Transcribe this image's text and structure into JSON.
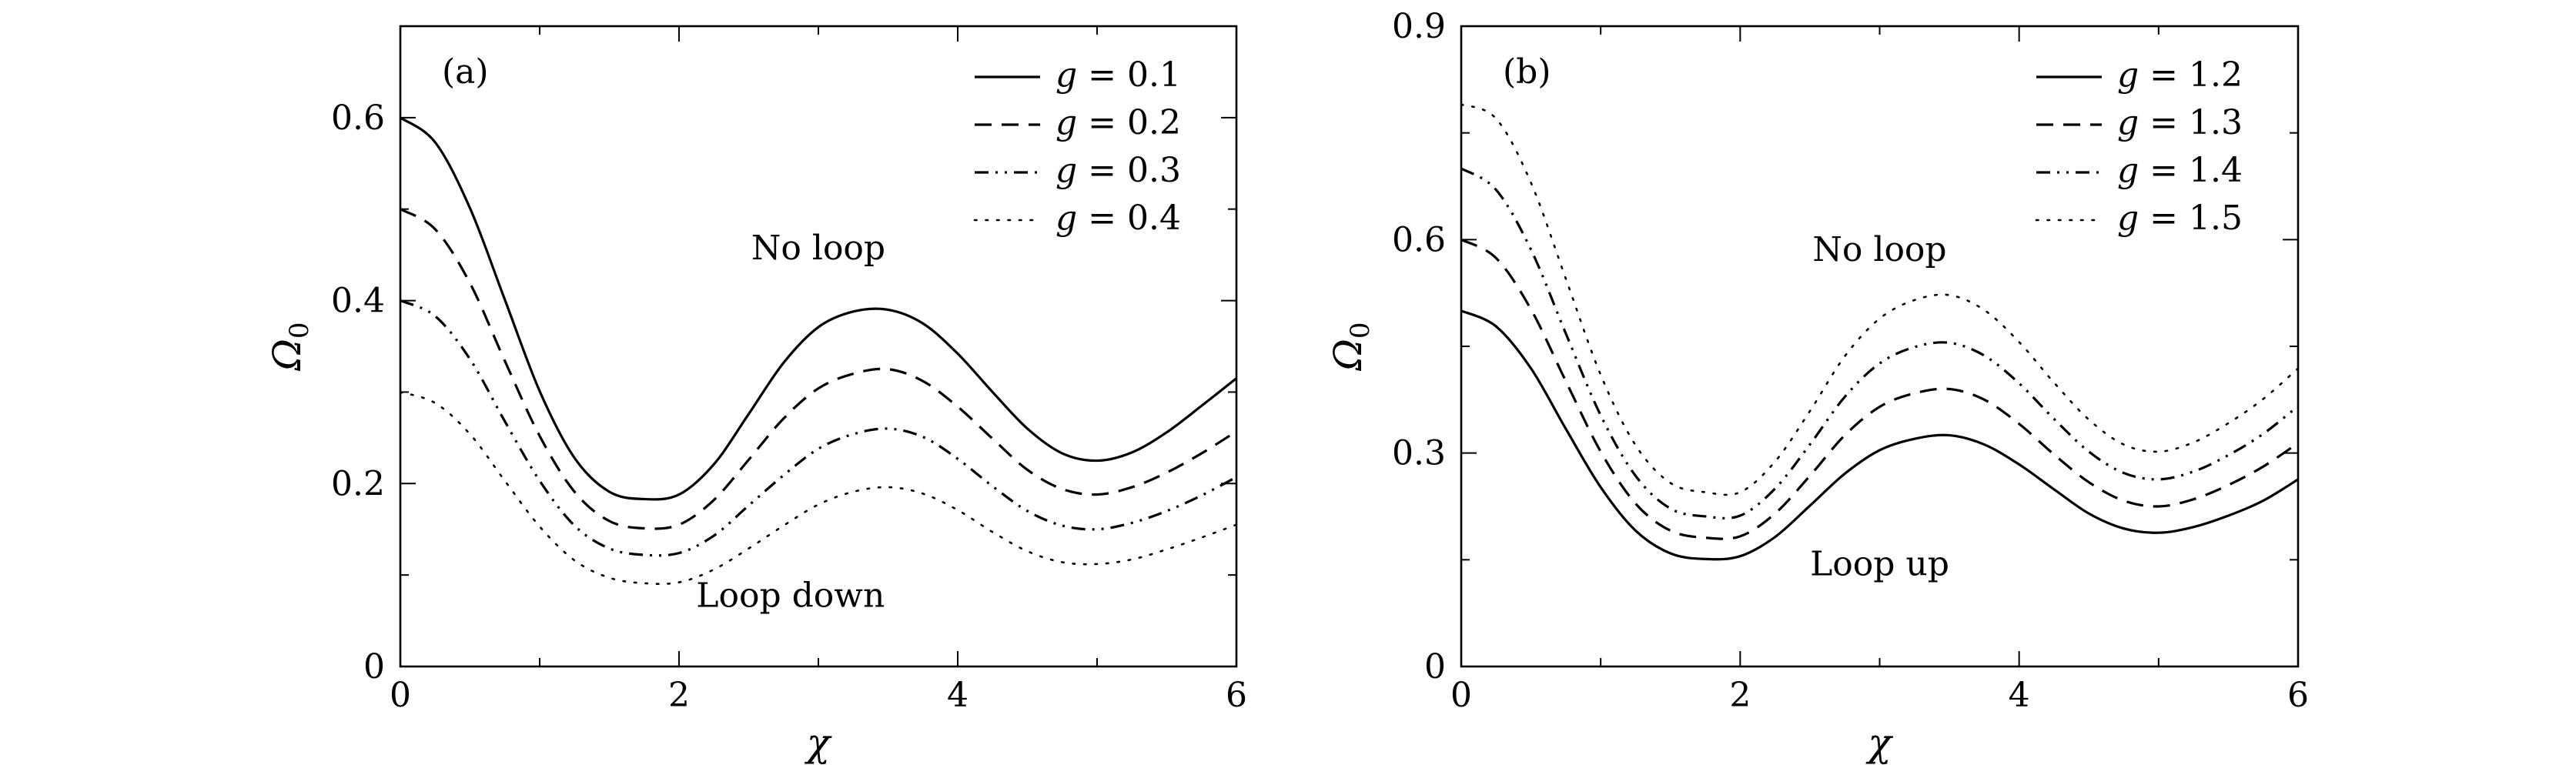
{
  "chart_data": [
    {
      "type": "line",
      "panel_label": "(a)",
      "xlabel": "χ",
      "ylabel": "Ω",
      "ylabel_sub": "0",
      "xlim": [
        0,
        6
      ],
      "ylim": [
        0,
        0.7
      ],
      "xticks": [
        0,
        2,
        4,
        6
      ],
      "xtick_labels": [
        "0",
        "2",
        "4",
        "6"
      ],
      "yticks": [
        0,
        0.2,
        0.4,
        0.6
      ],
      "ytick_labels": [
        "0",
        "0.2",
        "0.4",
        "0.6"
      ],
      "legend_position": "top-right",
      "legend_prefix": "g",
      "grid": false,
      "annotations": [
        {
          "text": "No loop",
          "x": 3.0,
          "y": 0.445
        },
        {
          "text": "Loop down",
          "x": 2.8,
          "y": 0.065
        }
      ],
      "x": [
        0,
        0.25,
        0.5,
        0.75,
        1.0,
        1.25,
        1.5,
        1.75,
        2.0,
        2.25,
        2.5,
        2.75,
        3.0,
        3.25,
        3.5,
        3.75,
        4.0,
        4.25,
        4.5,
        4.75,
        5.0,
        5.25,
        5.5,
        5.75,
        6.0
      ],
      "series": [
        {
          "name": "0.1",
          "style": "solid",
          "values": [
            0.6,
            0.573,
            0.501,
            0.401,
            0.301,
            0.228,
            0.191,
            0.183,
            0.188,
            0.221,
            0.276,
            0.332,
            0.371,
            0.388,
            0.39,
            0.375,
            0.342,
            0.3,
            0.26,
            0.233,
            0.225,
            0.234,
            0.256,
            0.285,
            0.315
          ]
        },
        {
          "name": "0.2",
          "style": "dashed",
          "values": [
            0.5,
            0.478,
            0.419,
            0.334,
            0.252,
            0.191,
            0.159,
            0.151,
            0.155,
            0.182,
            0.226,
            0.271,
            0.304,
            0.32,
            0.325,
            0.312,
            0.284,
            0.249,
            0.215,
            0.194,
            0.188,
            0.196,
            0.212,
            0.233,
            0.257
          ]
        },
        {
          "name": "0.3",
          "style": "dashdotdot",
          "values": [
            0.4,
            0.383,
            0.336,
            0.268,
            0.203,
            0.154,
            0.129,
            0.122,
            0.124,
            0.143,
            0.176,
            0.209,
            0.238,
            0.254,
            0.26,
            0.251,
            0.227,
            0.197,
            0.17,
            0.154,
            0.15,
            0.157,
            0.17,
            0.187,
            0.207
          ]
        },
        {
          "name": "0.4",
          "style": "dotted",
          "values": [
            0.3,
            0.288,
            0.254,
            0.203,
            0.153,
            0.116,
            0.097,
            0.091,
            0.092,
            0.106,
            0.129,
            0.154,
            0.177,
            0.191,
            0.196,
            0.189,
            0.171,
            0.147,
            0.126,
            0.114,
            0.112,
            0.117,
            0.128,
            0.141,
            0.155
          ]
        }
      ]
    },
    {
      "type": "line",
      "panel_label": "(b)",
      "xlabel": "χ",
      "ylabel": "Ω",
      "ylabel_sub": "0",
      "xlim": [
        0,
        6
      ],
      "ylim": [
        0,
        0.9
      ],
      "xticks": [
        0,
        2,
        4,
        6
      ],
      "xtick_labels": [
        "0",
        "2",
        "4",
        "6"
      ],
      "yticks": [
        0,
        0.3,
        0.6,
        0.9
      ],
      "ytick_labels": [
        "0",
        "0.3",
        "0.6",
        "0.9"
      ],
      "legend_position": "top-right",
      "legend_prefix": "g",
      "grid": false,
      "annotations": [
        {
          "text": "No loop",
          "x": 3.0,
          "y": 0.57
        },
        {
          "text": "Loop up",
          "x": 3.0,
          "y": 0.128
        }
      ],
      "x": [
        0,
        0.25,
        0.5,
        0.75,
        1.0,
        1.25,
        1.5,
        1.75,
        2.0,
        2.25,
        2.5,
        2.75,
        3.0,
        3.25,
        3.5,
        3.75,
        4.0,
        4.25,
        4.5,
        4.75,
        5.0,
        5.25,
        5.5,
        5.75,
        6.0
      ],
      "series": [
        {
          "name": "1.2",
          "style": "solid",
          "values": [
            0.5,
            0.478,
            0.419,
            0.334,
            0.252,
            0.191,
            0.159,
            0.151,
            0.155,
            0.182,
            0.226,
            0.271,
            0.304,
            0.32,
            0.325,
            0.312,
            0.284,
            0.249,
            0.215,
            0.194,
            0.188,
            0.196,
            0.212,
            0.233,
            0.263
          ]
        },
        {
          "name": "1.3",
          "style": "dashed",
          "values": [
            0.6,
            0.574,
            0.502,
            0.401,
            0.302,
            0.229,
            0.191,
            0.181,
            0.183,
            0.215,
            0.268,
            0.325,
            0.365,
            0.384,
            0.39,
            0.375,
            0.341,
            0.298,
            0.259,
            0.233,
            0.225,
            0.235,
            0.255,
            0.281,
            0.314
          ]
        },
        {
          "name": "1.4",
          "style": "dashdotdot",
          "values": [
            0.7,
            0.67,
            0.586,
            0.468,
            0.353,
            0.268,
            0.222,
            0.211,
            0.212,
            0.25,
            0.312,
            0.379,
            0.426,
            0.449,
            0.455,
            0.437,
            0.398,
            0.348,
            0.302,
            0.272,
            0.263,
            0.274,
            0.297,
            0.327,
            0.366
          ]
        },
        {
          "name": "1.5",
          "style": "dotted",
          "values": [
            0.79,
            0.77,
            0.68,
            0.545,
            0.41,
            0.311,
            0.258,
            0.245,
            0.245,
            0.288,
            0.359,
            0.436,
            0.489,
            0.515,
            0.522,
            0.501,
            0.456,
            0.399,
            0.347,
            0.312,
            0.302,
            0.315,
            0.342,
            0.376,
            0.419
          ]
        }
      ]
    }
  ]
}
